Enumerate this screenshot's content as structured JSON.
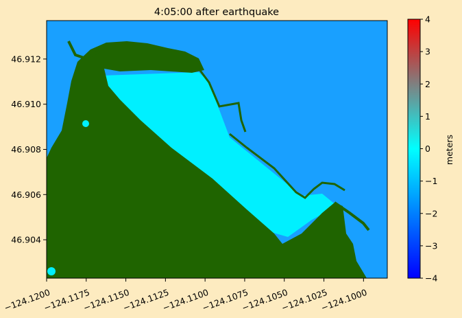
{
  "chart_data": {
    "type": "heatmap",
    "title": "4:05:00 after earthquake",
    "xlabel": "",
    "ylabel": "",
    "xlim": [
      -124.12,
      -124.0985
    ],
    "ylim": [
      46.9023,
      46.9137
    ],
    "xticks": [
      -124.12,
      -124.1175,
      -124.115,
      -124.1125,
      -124.11,
      -124.1075,
      -124.105,
      -124.1025,
      -124.1
    ],
    "xtick_labels": [
      "−124.1200",
      "−124.1175",
      "−124.1150",
      "−124.1125",
      "−124.1100",
      "−124.1075",
      "−124.1050",
      "−124.1025",
      "−124.1000"
    ],
    "yticks": [
      46.904,
      46.906,
      46.908,
      46.91,
      46.912
    ],
    "ytick_labels": [
      "46.904",
      "46.906",
      "46.908",
      "46.910",
      "46.912"
    ],
    "colorbar": {
      "label": "meters",
      "range": [
        -4,
        4
      ],
      "ticks": [
        -4,
        -3,
        -2,
        -1,
        0,
        1,
        2,
        3,
        4
      ],
      "tick_labels": [
        "−4",
        "−3",
        "−2",
        "−1",
        "0",
        "1",
        "2",
        "3",
        "4"
      ],
      "colors": [
        "#0000ff",
        "#00ffff",
        "#ff0000"
      ]
    },
    "land_color": "#1f6400",
    "inner_harbor_level_m": 0,
    "outer_water_level_m": -0.9,
    "grid": false
  }
}
